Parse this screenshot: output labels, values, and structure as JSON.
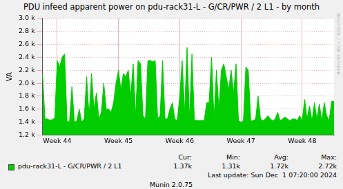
{
  "chart_data": {
    "type": "area",
    "title": "PDU infeed apparent power on pdu-rack31-L - G/CR/PWR / 2 L1 - by month",
    "y_label": "VA",
    "categories": [
      null,
      null,
      null,
      null,
      null,
      null,
      "Week 44",
      null,
      null,
      null,
      null,
      null,
      null,
      null,
      null,
      null,
      null,
      null,
      null,
      null,
      null,
      null,
      null,
      null,
      null,
      null,
      null,
      null,
      null,
      null,
      null,
      "Week 45",
      null,
      null,
      null,
      null,
      null,
      null,
      null,
      null,
      null,
      null,
      null,
      null,
      null,
      null,
      null,
      null,
      null,
      null,
      null,
      null,
      null,
      null,
      null,
      null,
      "Week 46",
      null,
      null,
      null,
      null,
      null,
      null,
      null,
      null,
      null,
      null,
      null,
      null,
      null,
      null,
      null,
      null,
      null,
      null,
      null,
      null,
      null,
      null,
      null,
      null,
      "Week 47",
      null,
      null,
      null,
      null,
      null,
      null,
      null,
      null,
      null,
      null,
      null,
      null,
      null,
      null,
      null,
      null,
      null,
      null,
      null,
      null,
      null,
      null,
      null,
      null,
      "Week 48",
      null,
      null,
      null,
      null,
      null,
      null,
      null,
      null,
      null,
      null,
      null,
      null,
      null
    ],
    "series": [
      {
        "name": "pdu-rack31-L - G/CR/PWR / 2 L1",
        "color": "#00cc00",
        "values": [
          2150,
          1450,
          1450,
          1430,
          1440,
          1460,
          2350,
          2250,
          2400,
          2450,
          1420,
          1400,
          1950,
          1400,
          1420,
          1600,
          1400,
          1450,
          2100,
          1500,
          2150,
          1600,
          1850,
          1450,
          1550,
          2000,
          1600,
          1600,
          1550,
          1700,
          2000,
          2200,
          1900,
          2150,
          2100,
          2200,
          1800,
          2300,
          1500,
          2350,
          2300,
          1500,
          1450,
          2350,
          2350,
          2330,
          2350,
          1450,
          1500,
          2350,
          1450,
          1450,
          1600,
          1700,
          1450,
          1420,
          1800,
          2350,
          1550,
          2550,
          1450,
          2450,
          1420,
          1430,
          1420,
          1430,
          1420,
          1700,
          1700,
          2400,
          1450,
          2200,
          1600,
          2200,
          2300,
          2100,
          1900,
          2200,
          1850,
          2300,
          1420,
          1400,
          1420,
          2250,
          2200,
          1420,
          1420,
          1450,
          1800,
          1450,
          1420,
          1450,
          1500,
          1450,
          1420,
          1450,
          1550,
          1420,
          1450,
          1480,
          1450,
          1420,
          1450,
          1450,
          1430,
          1500,
          1420,
          1750,
          1450,
          1650,
          1420,
          1700,
          1450,
          1680,
          1420,
          1700,
          1500,
          1420,
          1720,
          1720
        ]
      }
    ],
    "ylim": [
      1200,
      3000
    ],
    "yticks": [
      {
        "value": 1200,
        "label": "1.2 k"
      },
      {
        "value": 1400,
        "label": "1.4 k"
      },
      {
        "value": 1600,
        "label": "1.6 k"
      },
      {
        "value": 1800,
        "label": "1.8 k"
      },
      {
        "value": 2000,
        "label": "2.0 k"
      },
      {
        "value": 2200,
        "label": "2.2 k"
      },
      {
        "value": 2400,
        "label": "2.4 k"
      },
      {
        "value": 2600,
        "label": "2.6 k"
      },
      {
        "value": 2800,
        "label": "2.8 k"
      },
      {
        "value": 3000,
        "label": "3.0 k"
      }
    ],
    "grid": true,
    "stats": [
      {
        "label": "Cur:",
        "value": 1370,
        "text": "1.37k"
      },
      {
        "label": "Min:",
        "value": 1310,
        "text": "1.31k"
      },
      {
        "label": "Avg:",
        "value": 1720,
        "text": "1.72k"
      },
      {
        "label": "Max:",
        "value": 2720,
        "text": "2.72k"
      }
    ],
    "footer": "Last update: Sun Dec  1 07:20:00 2024",
    "version": "Munin 2.0.75",
    "side_text": "RRDTOOL / TOBI OETIKER"
  }
}
